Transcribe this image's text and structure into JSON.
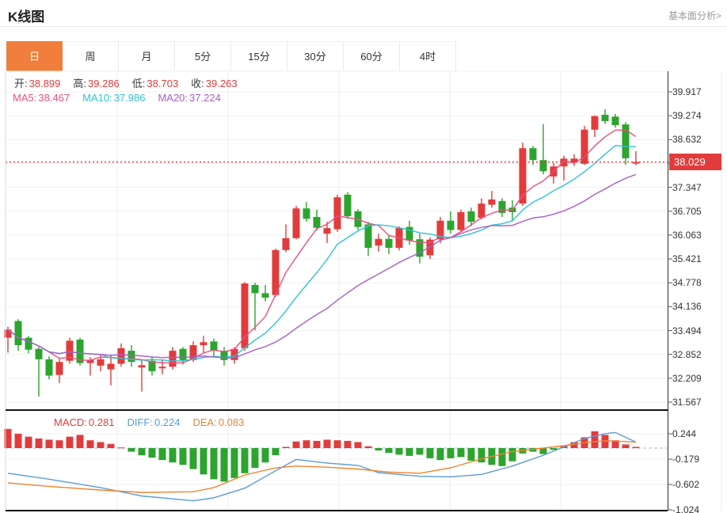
{
  "header": {
    "title": "K线图",
    "link_label": "基本面分析>"
  },
  "tabs": {
    "active_index": 0,
    "items": [
      "日",
      "周",
      "月",
      "5分",
      "15分",
      "30分",
      "60分",
      "4时"
    ]
  },
  "legend": {
    "ohlc": [
      {
        "label": "开:",
        "value": "38.899"
      },
      {
        "label": "高:",
        "value": "39.286"
      },
      {
        "label": "低:",
        "value": "38.703"
      },
      {
        "label": "收:",
        "value": "39.263"
      }
    ],
    "ma": [
      {
        "label": "MA5:",
        "value": "38.467",
        "color": "#e8507e"
      },
      {
        "label": "MA10:",
        "value": "37.986",
        "color": "#2fc2d6"
      },
      {
        "label": "MA20:",
        "value": "37.224",
        "color": "#a55fc4"
      }
    ],
    "macd": [
      {
        "label": "MACD:",
        "value": "0.281",
        "color": "#e23b3c"
      },
      {
        "label": "DIFF:",
        "value": "0.224",
        "color": "#5b9bd5"
      },
      {
        "label": "DEA:",
        "value": "0.083",
        "color": "#ee8430"
      }
    ]
  },
  "price_axis": {
    "labels": [
      "39.917",
      "39.274",
      "38.632",
      "38.029",
      "37.347",
      "36.705",
      "36.063",
      "35.421",
      "34.778",
      "34.136",
      "33.494",
      "32.852",
      "32.209",
      "31.567"
    ],
    "current_index": 3,
    "current_price": "38.029"
  },
  "macd_axis": {
    "labels": [
      "0.244",
      "-0.179",
      "-0.602",
      "-1.024"
    ]
  },
  "colors": {
    "up": "#e23b3c",
    "down": "#2ca42e",
    "ma5": "#e8507e",
    "ma10": "#2fc2d6",
    "ma20": "#a55fc4",
    "diff": "#5b9bd5",
    "dea": "#ee8430",
    "accent_tab": "#f07f3d",
    "grid": "#ededed",
    "axis_text": "#333333",
    "current_line": "#e23b3c"
  },
  "chart_data": {
    "type": "candlestick",
    "title": "K线图",
    "period_selected": "日",
    "price_ylim": [
      31.567,
      39.917
    ],
    "price_ticks": [
      39.917,
      39.274,
      38.632,
      37.989,
      37.347,
      36.705,
      36.063,
      35.421,
      34.778,
      34.136,
      33.494,
      32.852,
      32.209,
      31.567
    ],
    "current_price": 38.029,
    "ohlc_selected": {
      "open": 38.899,
      "high": 39.286,
      "low": 38.703,
      "close": 39.263
    },
    "ma_values": {
      "ma5": 38.467,
      "ma10": 37.986,
      "ma20": 37.224
    },
    "ma_periods": [
      5,
      10,
      20
    ],
    "macd_values": {
      "macd": 0.281,
      "diff": 0.224,
      "dea": 0.083
    },
    "macd_ylim": [
      -1.044,
      0.608
    ],
    "macd_ticks": [
      0.244,
      -0.179,
      -0.602,
      -1.024
    ],
    "candles": [
      [
        33.3,
        33.6,
        32.9,
        33.52
      ],
      [
        33.75,
        33.8,
        32.95,
        33.1
      ],
      [
        33.3,
        33.35,
        32.88,
        32.98
      ],
      [
        33.0,
        33.05,
        31.72,
        32.72
      ],
      [
        32.72,
        32.8,
        32.18,
        32.28
      ],
      [
        32.3,
        32.75,
        32.08,
        32.65
      ],
      [
        32.68,
        33.3,
        32.6,
        33.22
      ],
      [
        33.25,
        33.3,
        32.55,
        32.62
      ],
      [
        32.62,
        32.78,
        32.28,
        32.7
      ],
      [
        32.55,
        32.85,
        32.4,
        32.72
      ],
      [
        32.45,
        32.85,
        32.02,
        32.6
      ],
      [
        32.6,
        33.15,
        32.52,
        33.02
      ],
      [
        32.95,
        33.1,
        32.52,
        32.65
      ],
      [
        32.5,
        32.7,
        31.85,
        32.56
      ],
      [
        32.68,
        32.8,
        32.28,
        32.4
      ],
      [
        32.48,
        32.72,
        32.32,
        32.52
      ],
      [
        32.52,
        33.05,
        32.45,
        32.95
      ],
      [
        33.0,
        33.05,
        32.58,
        32.7
      ],
      [
        32.7,
        33.2,
        32.65,
        33.1
      ],
      [
        33.1,
        33.35,
        32.9,
        33.18
      ],
      [
        33.2,
        33.28,
        32.82,
        32.95
      ],
      [
        32.95,
        33.05,
        32.55,
        32.7
      ],
      [
        32.7,
        33.05,
        32.6,
        33.0
      ],
      [
        33.02,
        34.8,
        32.95,
        34.76
      ],
      [
        34.72,
        34.78,
        33.5,
        34.5
      ],
      [
        34.5,
        34.72,
        34.28,
        34.38
      ],
      [
        34.45,
        35.7,
        34.4,
        35.66
      ],
      [
        35.66,
        36.35,
        35.6,
        35.98
      ],
      [
        35.98,
        36.85,
        35.95,
        36.78
      ],
      [
        36.78,
        36.95,
        36.42,
        36.5
      ],
      [
        36.55,
        36.75,
        36.18,
        36.26
      ],
      [
        36.1,
        36.42,
        35.85,
        36.25
      ],
      [
        36.22,
        37.15,
        36.15,
        37.08
      ],
      [
        37.15,
        37.22,
        36.5,
        36.57
      ],
      [
        36.7,
        36.76,
        36.2,
        36.28
      ],
      [
        36.35,
        36.42,
        35.5,
        35.72
      ],
      [
        35.78,
        36.1,
        35.62,
        35.96
      ],
      [
        35.96,
        36.06,
        35.55,
        35.72
      ],
      [
        35.72,
        36.3,
        35.65,
        36.25
      ],
      [
        36.28,
        36.45,
        35.8,
        35.92
      ],
      [
        35.95,
        36.1,
        35.3,
        35.48
      ],
      [
        35.52,
        36.0,
        35.42,
        35.94
      ],
      [
        35.95,
        36.55,
        35.85,
        36.45
      ],
      [
        36.45,
        36.7,
        36.1,
        36.2
      ],
      [
        36.2,
        36.75,
        36.15,
        36.68
      ],
      [
        36.7,
        36.8,
        36.3,
        36.42
      ],
      [
        36.53,
        37.05,
        36.48,
        36.91
      ],
      [
        36.88,
        37.25,
        36.8,
        37.02
      ],
      [
        36.98,
        37.05,
        36.55,
        36.66
      ],
      [
        36.8,
        37.0,
        36.45,
        36.68
      ],
      [
        36.91,
        38.55,
        36.85,
        38.4
      ],
      [
        38.4,
        38.46,
        37.95,
        38.08
      ],
      [
        38.08,
        39.05,
        37.7,
        37.78
      ],
      [
        37.64,
        38.0,
        37.45,
        37.91
      ],
      [
        37.91,
        38.2,
        37.53,
        38.12
      ],
      [
        38.02,
        38.24,
        37.92,
        38.12
      ],
      [
        37.98,
        39.0,
        37.95,
        38.9
      ],
      [
        38.899,
        39.286,
        38.703,
        39.263
      ],
      [
        39.3,
        39.45,
        39.05,
        39.13
      ],
      [
        39.25,
        39.32,
        38.95,
        39.02
      ],
      [
        39.04,
        39.1,
        37.95,
        38.13
      ],
      [
        38.0,
        38.32,
        37.94,
        38.029
      ]
    ],
    "macd_hist": [
      0.32,
      0.24,
      0.19,
      0.16,
      0.14,
      0.13,
      0.19,
      0.22,
      0.13,
      0.1,
      0.07,
      0.01,
      -0.06,
      -0.12,
      -0.16,
      -0.2,
      -0.24,
      -0.28,
      -0.35,
      -0.44,
      -0.52,
      -0.56,
      -0.5,
      -0.42,
      -0.33,
      -0.24,
      -0.12,
      0.02,
      0.11,
      0.13,
      0.12,
      0.14,
      0.13,
      0.12,
      0.1,
      0.03,
      -0.04,
      -0.08,
      -0.11,
      -0.13,
      -0.11,
      -0.17,
      -0.2,
      -0.17,
      -0.15,
      -0.21,
      -0.24,
      -0.28,
      -0.3,
      -0.22,
      -0.09,
      -0.06,
      -0.1,
      -0.03,
      0.04,
      0.1,
      0.18,
      0.281,
      0.22,
      0.13,
      0.06,
      0.02
    ],
    "diff_points": [
      [
        0,
        -0.42
      ],
      [
        4,
        -0.52
      ],
      [
        9,
        -0.66
      ],
      [
        13,
        -0.8
      ],
      [
        18,
        -0.88
      ],
      [
        20,
        -0.83
      ],
      [
        23,
        -0.67
      ],
      [
        26,
        -0.38
      ],
      [
        28,
        -0.19
      ],
      [
        31,
        -0.25
      ],
      [
        34,
        -0.29
      ],
      [
        36,
        -0.41
      ],
      [
        40,
        -0.47
      ],
      [
        43,
        -0.48
      ],
      [
        46,
        -0.44
      ],
      [
        49,
        -0.3
      ],
      [
        52,
        -0.12
      ],
      [
        54,
        0.02
      ],
      [
        56,
        0.16
      ],
      [
        58,
        0.24
      ],
      [
        59,
        0.26
      ],
      [
        60,
        0.18
      ],
      [
        61,
        0.1
      ]
    ],
    "dea_points": [
      [
        0,
        -0.58
      ],
      [
        4,
        -0.64
      ],
      [
        9,
        -0.7
      ],
      [
        13,
        -0.74
      ],
      [
        18,
        -0.73
      ],
      [
        20,
        -0.66
      ],
      [
        23,
        -0.45
      ],
      [
        26,
        -0.33
      ],
      [
        28,
        -0.3
      ],
      [
        31,
        -0.32
      ],
      [
        34,
        -0.35
      ],
      [
        37,
        -0.4
      ],
      [
        40,
        -0.42
      ],
      [
        43,
        -0.33
      ],
      [
        46,
        -0.18
      ],
      [
        49,
        -0.06
      ],
      [
        52,
        0.0
      ],
      [
        54,
        0.04
      ],
      [
        56,
        0.09
      ],
      [
        58,
        0.12
      ],
      [
        60,
        0.11
      ],
      [
        61,
        0.1
      ]
    ]
  }
}
